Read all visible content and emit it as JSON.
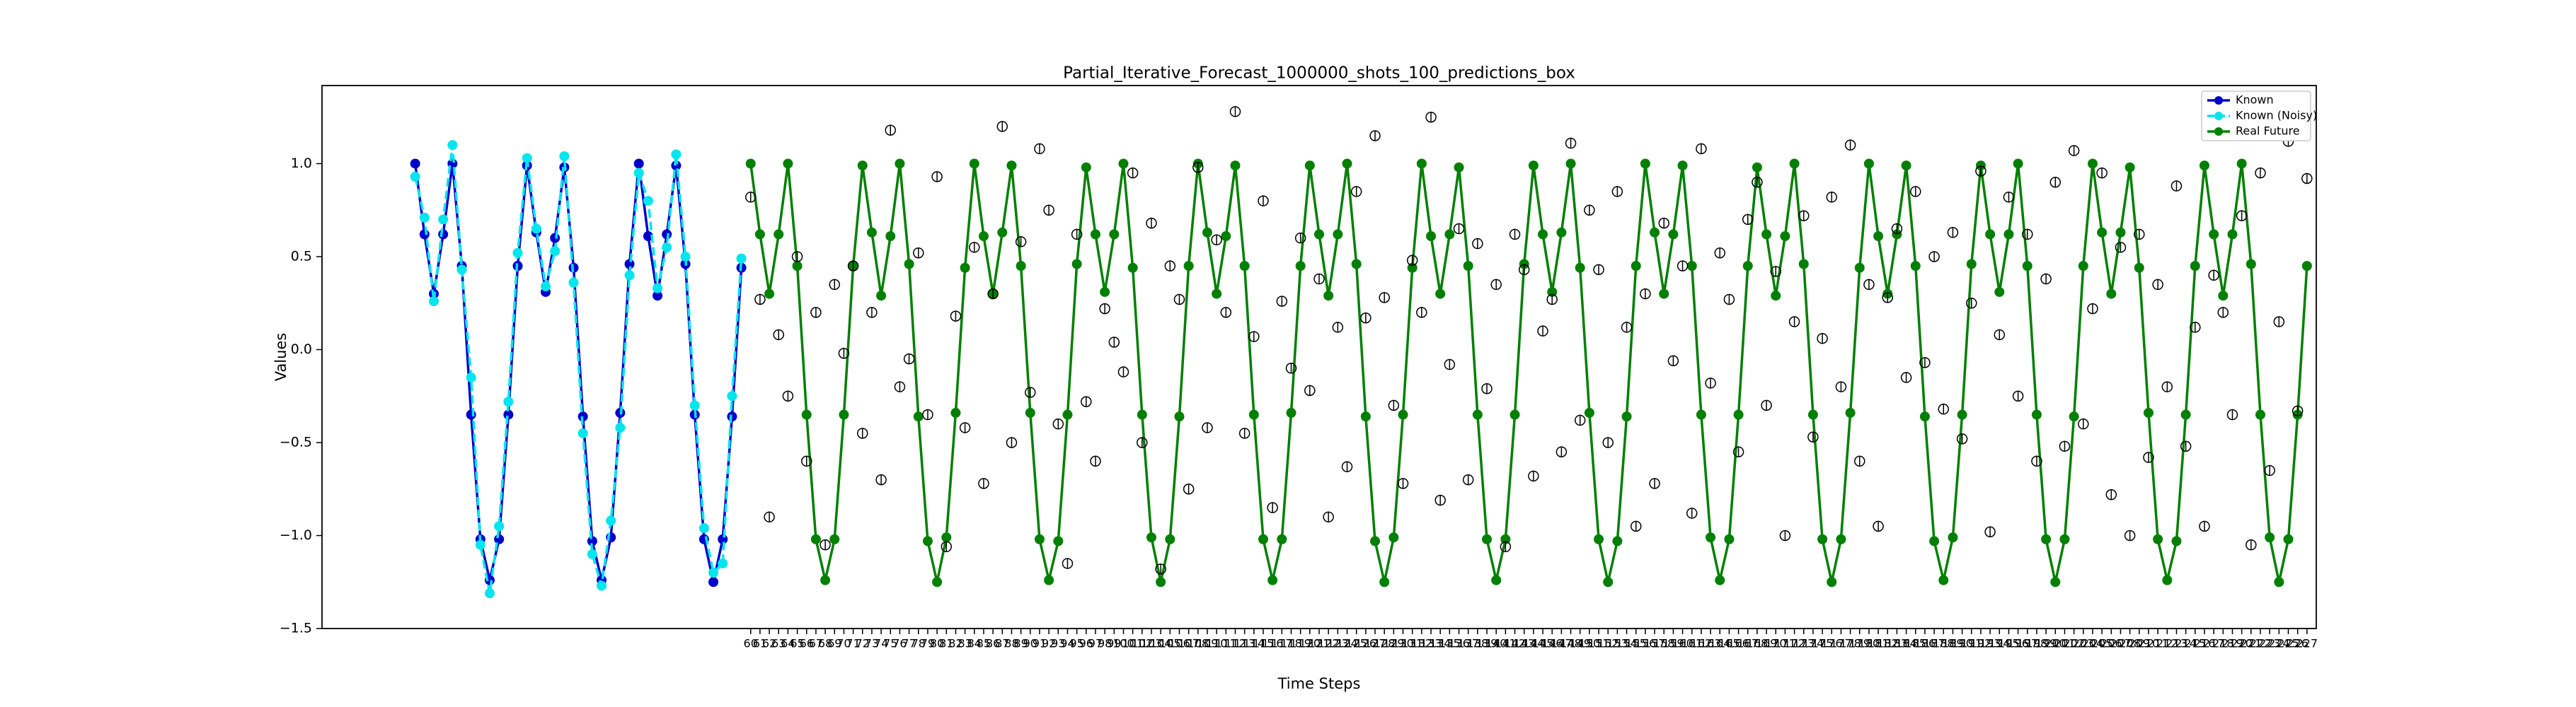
{
  "chart_data": {
    "type": "line",
    "title": "Partial_Iterative_Forecast_1000000_shots_100_predictions_box",
    "x_label": "Time Steps",
    "y_label": "Values",
    "xlim": [
      14,
      228
    ],
    "ylim": [
      -1.5,
      1.42
    ],
    "yticks": [
      {
        "value": -1.5,
        "label": "−1.5"
      },
      {
        "value": -1.0,
        "label": "−1.0"
      },
      {
        "value": -0.5,
        "label": "−0.5"
      },
      {
        "value": 0.0,
        "label": "0.0"
      },
      0.5,
      {
        "value": 1.0,
        "label": "1.0"
      }
    ],
    "xticks": [
      60,
      61,
      62,
      63,
      64,
      65,
      66,
      67,
      68,
      69,
      70,
      71,
      72,
      73,
      74,
      75,
      76,
      77,
      78,
      79,
      80,
      81,
      82,
      83,
      84,
      85,
      86,
      87,
      88,
      89,
      90,
      91,
      92,
      93,
      94,
      95,
      96,
      97,
      98,
      99,
      100,
      101,
      102,
      103,
      104,
      105,
      106,
      107,
      108,
      109,
      110,
      111,
      112,
      113,
      114,
      115,
      116,
      117,
      118,
      119,
      120,
      121,
      122,
      123,
      124,
      125,
      126,
      127,
      128,
      129,
      130,
      131,
      132,
      133,
      134,
      135,
      136,
      137,
      138,
      139,
      140,
      141,
      142,
      143,
      144,
      145,
      146,
      147,
      148,
      149,
      150,
      151,
      152,
      153,
      154,
      155,
      156,
      157,
      158,
      159,
      160,
      161,
      162,
      163,
      164,
      165,
      166,
      167,
      168,
      169,
      170,
      171,
      172,
      173,
      174,
      175,
      176,
      177,
      178,
      179,
      180,
      181,
      182,
      183,
      184,
      185,
      186,
      187,
      188,
      189,
      190,
      191,
      192,
      193,
      194,
      195,
      196,
      197,
      198,
      199,
      200,
      201,
      202,
      203,
      204,
      205,
      206,
      207,
      208,
      209,
      210,
      211,
      212,
      213,
      214,
      215,
      216,
      217,
      218,
      219,
      220,
      221,
      222,
      223,
      224,
      225,
      226,
      227
    ],
    "legend": "upper right",
    "series": [
      {
        "name": "Known",
        "color": "#0000cd",
        "dash": false,
        "x": [
          24,
          25,
          26,
          27,
          28,
          29,
          30,
          31,
          32,
          33,
          34,
          35,
          36,
          37,
          38,
          39,
          40,
          41,
          42,
          43,
          44,
          45,
          46,
          47,
          48,
          49,
          50,
          51,
          52,
          53,
          54,
          55,
          56,
          57,
          58,
          59
        ],
        "values": [
          1.0,
          0.62,
          0.3,
          0.62,
          1.0,
          0.45,
          -0.35,
          -1.02,
          -1.24,
          -1.02,
          -0.35,
          0.45,
          0.99,
          0.63,
          0.31,
          0.6,
          0.98,
          0.44,
          -0.36,
          -1.03,
          -1.24,
          -1.01,
          -0.34,
          0.46,
          1.0,
          0.61,
          0.29,
          0.62,
          0.99,
          0.46,
          -0.35,
          -1.02,
          -1.25,
          -1.02,
          -0.36,
          0.44
        ]
      },
      {
        "name": "Known (Noisy)",
        "color": "#00e5ee",
        "dash": true,
        "x": [
          24,
          25,
          26,
          27,
          28,
          29,
          30,
          31,
          32,
          33,
          34,
          35,
          36,
          37,
          38,
          39,
          40,
          41,
          42,
          43,
          44,
          45,
          46,
          47,
          48,
          49,
          50,
          51,
          52,
          53,
          54,
          55,
          56,
          57,
          58,
          59
        ],
        "values": [
          0.93,
          0.71,
          0.26,
          0.7,
          1.1,
          0.43,
          -0.15,
          -1.05,
          -1.31,
          -0.95,
          -0.28,
          0.52,
          1.03,
          0.65,
          0.34,
          0.53,
          1.04,
          0.36,
          -0.45,
          -1.1,
          -1.27,
          -0.92,
          -0.42,
          0.4,
          0.95,
          0.8,
          0.33,
          0.55,
          1.05,
          0.5,
          -0.3,
          -0.96,
          -1.2,
          -1.15,
          -0.25,
          0.49
        ]
      },
      {
        "name": "Real Future",
        "color": "#008000",
        "dash": false,
        "x": [
          60,
          61,
          62,
          63,
          64,
          65,
          66,
          67,
          68,
          69,
          70,
          71,
          72,
          73,
          74,
          75,
          76,
          77,
          78,
          79,
          80,
          81,
          82,
          83,
          84,
          85,
          86,
          87,
          88,
          89,
          90,
          91,
          92,
          93,
          94,
          95,
          96,
          97,
          98,
          99,
          100,
          101,
          102,
          103,
          104,
          105,
          106,
          107,
          108,
          109,
          110,
          111,
          112,
          113,
          114,
          115,
          116,
          117,
          118,
          119,
          120,
          121,
          122,
          123,
          124,
          125,
          126,
          127,
          128,
          129,
          130,
          131,
          132,
          133,
          134,
          135,
          136,
          137,
          138,
          139,
          140,
          141,
          142,
          143,
          144,
          145,
          146,
          147,
          148,
          149,
          150,
          151,
          152,
          153,
          154,
          155,
          156,
          157,
          158,
          159,
          160,
          161,
          162,
          163,
          164,
          165,
          166,
          167,
          168,
          169,
          170,
          171,
          172,
          173,
          174,
          175,
          176,
          177,
          178,
          179,
          180,
          181,
          182,
          183,
          184,
          185,
          186,
          187,
          188,
          189,
          190,
          191,
          192,
          193,
          194,
          195,
          196,
          197,
          198,
          199,
          200,
          201,
          202,
          203,
          204,
          205,
          206,
          207,
          208,
          209,
          210,
          211,
          212,
          213,
          214,
          215,
          216,
          217,
          218,
          219,
          220,
          221,
          222,
          223,
          224,
          225,
          226,
          227
        ],
        "values": [
          1.0,
          0.62,
          0.3,
          0.62,
          1.0,
          0.45,
          -0.35,
          -1.02,
          -1.24,
          -1.02,
          -0.35,
          0.45,
          0.99,
          0.63,
          0.29,
          0.61,
          1.0,
          0.46,
          -0.36,
          -1.03,
          -1.25,
          -1.01,
          -0.34,
          0.44,
          1.0,
          0.61,
          0.3,
          0.63,
          0.99,
          0.45,
          -0.34,
          -1.02,
          -1.24,
          -1.03,
          -0.35,
          0.46,
          0.98,
          0.62,
          0.31,
          0.62,
          1.0,
          0.44,
          -0.35,
          -1.01,
          -1.25,
          -1.02,
          -0.36,
          0.45,
          1.0,
          0.63,
          0.3,
          0.61,
          0.99,
          0.45,
          -0.35,
          -1.02,
          -1.24,
          -1.02,
          -0.34,
          0.45,
          0.99,
          0.62,
          0.29,
          0.62,
          1.0,
          0.46,
          -0.36,
          -1.03,
          -1.25,
          -1.01,
          -0.35,
          0.44,
          1.0,
          0.61,
          0.3,
          0.62,
          0.98,
          0.45,
          -0.35,
          -1.02,
          -1.24,
          -1.02,
          -0.35,
          0.46,
          0.99,
          0.62,
          0.31,
          0.63,
          1.0,
          0.44,
          -0.34,
          -1.02,
          -1.25,
          -1.03,
          -0.36,
          0.45,
          1.0,
          0.63,
          0.3,
          0.62,
          0.99,
          0.45,
          -0.35,
          -1.01,
          -1.24,
          -1.02,
          -0.35,
          0.45,
          0.98,
          0.62,
          0.29,
          0.61,
          1.0,
          0.46,
          -0.35,
          -1.02,
          -1.25,
          -1.02,
          -0.34,
          0.44,
          1.0,
          0.61,
          0.3,
          0.62,
          0.99,
          0.45,
          -0.36,
          -1.03,
          -1.24,
          -1.01,
          -0.35,
          0.46,
          0.99,
          0.62,
          0.31,
          0.62,
          1.0,
          0.45,
          -0.35,
          -1.02,
          -1.25,
          -1.02,
          -0.36,
          0.45,
          1.0,
          0.63,
          0.3,
          0.63,
          0.98,
          0.44,
          -0.34,
          -1.02,
          -1.24,
          -1.03,
          -0.35,
          0.45,
          0.99,
          0.62,
          0.29,
          0.62,
          1.0,
          0.46,
          -0.35,
          -1.01,
          -1.25,
          -1.02,
          -0.35,
          0.45
        ]
      }
    ],
    "predictions": {
      "color": "#000000",
      "values": [
        0.82,
        0.27,
        -0.9,
        0.08,
        -0.25,
        0.5,
        -0.6,
        0.2,
        -1.05,
        0.35,
        -0.02,
        0.45,
        -0.45,
        0.2,
        -0.7,
        1.18,
        -0.2,
        -0.05,
        0.52,
        -0.35,
        0.93,
        -1.06,
        0.18,
        -0.42,
        0.55,
        -0.72,
        0.3,
        1.2,
        -0.5,
        0.58,
        -0.23,
        1.08,
        0.75,
        -0.4,
        -1.15,
        0.62,
        -0.28,
        -0.6,
        0.22,
        0.04,
        -0.12,
        0.95,
        -0.5,
        0.68,
        -1.18,
        0.45,
        0.27,
        -0.75,
        0.98,
        -0.42,
        0.59,
        0.2,
        1.28,
        -0.45,
        0.07,
        0.8,
        -0.85,
        0.26,
        -0.1,
        0.6,
        -0.22,
        0.38,
        -0.9,
        0.12,
        -0.63,
        0.85,
        0.17,
        1.15,
        0.28,
        -0.3,
        -0.72,
        0.48,
        0.2,
        1.25,
        -0.81,
        -0.08,
        0.65,
        -0.7,
        0.57,
        -0.21,
        0.35,
        -1.06,
        0.62,
        0.43,
        -0.68,
        0.1,
        0.27,
        -0.55,
        1.11,
        -0.38,
        0.75,
        0.43,
        -0.5,
        0.85,
        0.12,
        -0.95,
        0.3,
        -0.72,
        0.68,
        -0.06,
        0.45,
        -0.88,
        1.08,
        -0.18,
        0.52,
        0.27,
        -0.55,
        0.7,
        0.9,
        -0.3,
        0.42,
        -1.0,
        0.15,
        0.72,
        -0.47,
        0.06,
        0.82,
        -0.2,
        1.1,
        -0.6,
        0.35,
        -0.95,
        0.28,
        0.65,
        -0.15,
        0.85,
        -0.07,
        0.5,
        -0.32,
        0.63,
        -0.48,
        0.25,
        0.96,
        -0.98,
        0.08,
        0.82,
        -0.25,
        0.62,
        -0.6,
        0.38,
        0.9,
        -0.52,
        1.07,
        -0.4,
        0.22,
        0.95,
        -0.78,
        0.55,
        -1.0,
        0.62,
        -0.58,
        0.35,
        -0.2,
        0.88,
        -0.52,
        0.12,
        -0.95,
        0.4,
        0.2,
        -0.35,
        0.72,
        -1.05,
        0.95,
        -0.65,
        0.15,
        1.12,
        -0.33,
        0.92
      ]
    }
  }
}
